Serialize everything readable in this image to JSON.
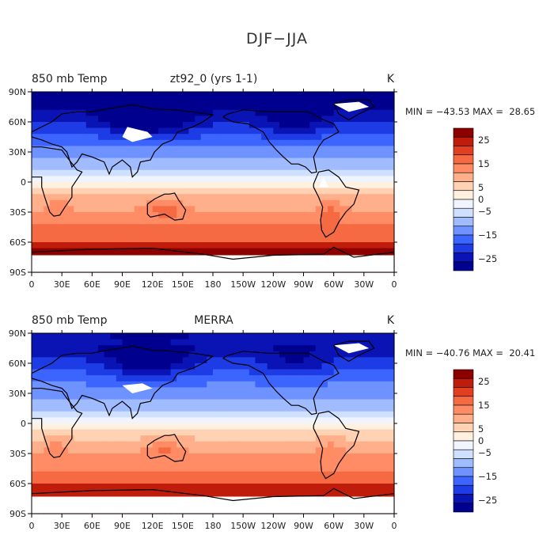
{
  "title": "DJF−JJA",
  "colorbar": {
    "colors": [
      "#00008f",
      "#0a14b4",
      "#1e3ce6",
      "#3c64ff",
      "#6e92ff",
      "#a0bcff",
      "#cfe0ff",
      "#f0f4ff",
      "#fff0e0",
      "#ffd2b4",
      "#ffb08a",
      "#ff8c64",
      "#f56a42",
      "#e04020",
      "#c01c0c",
      "#8c0000"
    ],
    "labels": [
      "25",
      "15",
      "5",
      "0",
      "−5",
      "−15",
      "−25"
    ],
    "label_values": [
      25,
      15,
      5,
      0,
      -5,
      -15,
      -25
    ]
  },
  "panels": [
    {
      "left_label": "850 mb Temp",
      "center_label": "zt92_0 (yrs 1-1)",
      "unit": "K",
      "stats": "MIN = −43.53 MAX =  28.65"
    },
    {
      "left_label": "850 mb Temp",
      "center_label": "MERRA",
      "unit": "K",
      "stats": "MIN = −40.76 MAX =  20.41"
    }
  ],
  "chart_data": [
    {
      "type": "heatmap",
      "title": "850 mb Temp — zt92_0 (yrs 1-1)",
      "variable": "850 mb Temp",
      "units": "K",
      "min": -43.53,
      "max": 28.65,
      "xticks": [
        "0",
        "30E",
        "60E",
        "90E",
        "120E",
        "150E",
        "180",
        "150W",
        "120W",
        "90W",
        "60W",
        "30W",
        "0"
      ],
      "yticks": [
        "90N",
        "60N",
        "30N",
        "0",
        "30S",
        "60S",
        "90S"
      ],
      "xlim": [
        0,
        360
      ],
      "ylim": [
        -90,
        90
      ]
    },
    {
      "type": "heatmap",
      "title": "850 mb Temp — MERRA",
      "variable": "850 mb Temp",
      "units": "K",
      "min": -40.76,
      "max": 20.41,
      "xticks": [
        "0",
        "30E",
        "60E",
        "90E",
        "120E",
        "150E",
        "180",
        "150W",
        "120W",
        "90W",
        "60W",
        "30W",
        "0"
      ],
      "yticks": [
        "90N",
        "60N",
        "30N",
        "0",
        "30S",
        "60S",
        "90S"
      ],
      "xlim": [
        0,
        360
      ],
      "ylim": [
        -90,
        90
      ]
    }
  ]
}
